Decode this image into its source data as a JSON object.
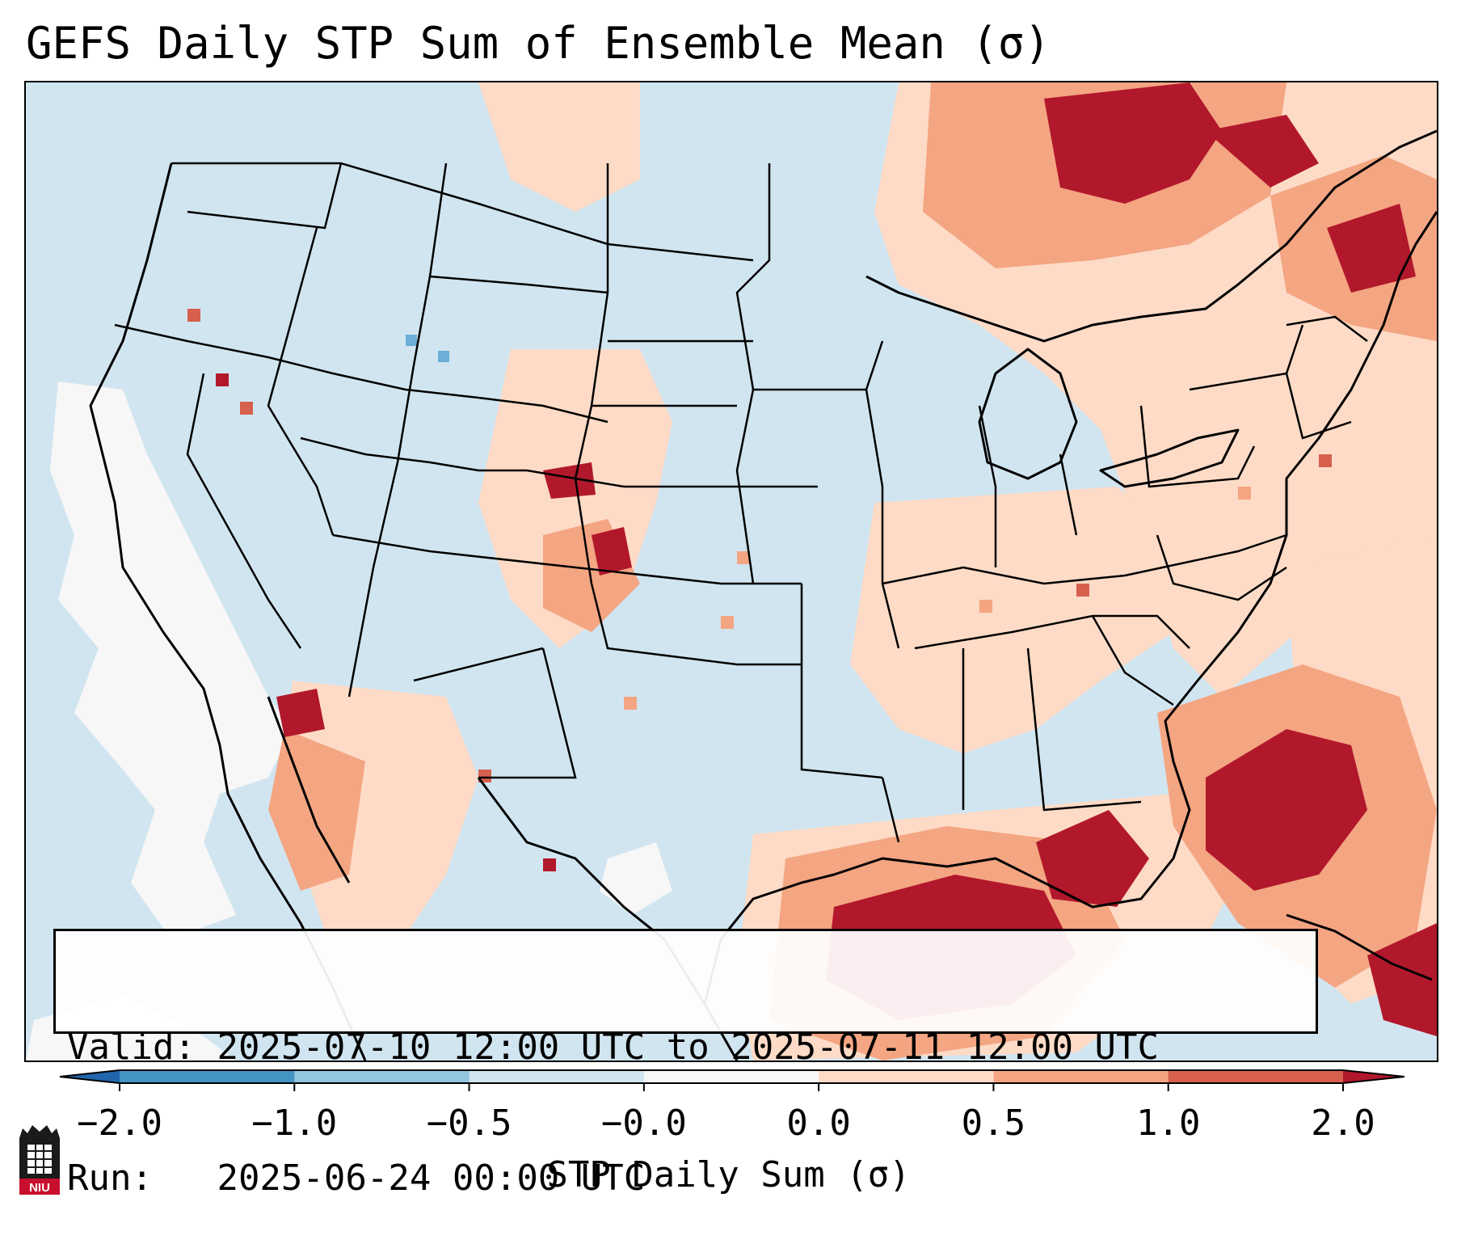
{
  "title": "GEFS Daily STP Sum of Ensemble Mean (σ)",
  "info": {
    "valid_label": "Valid:",
    "valid_value": "2025-07-10 12:00 UTC to 2025-07-11 12:00 UTC",
    "run_label": "Run:",
    "run_value": "2025-06-24 00:00 UTC"
  },
  "colorbar": {
    "label": "STP Daily Sum (σ)",
    "ticks": [
      "−2.0",
      "−1.0",
      "−0.5",
      "−0.0",
      "0.0",
      "0.5",
      "1.0",
      "2.0"
    ],
    "bins": [
      {
        "range": "below -2.0",
        "color": "#2166ac"
      },
      {
        "range": "-2.0 to -1.0",
        "color": "#4393c3"
      },
      {
        "range": "-1.0 to -0.5",
        "color": "#92c5de"
      },
      {
        "range": "-0.5 to -0.0",
        "color": "#d1e5f0"
      },
      {
        "range": "-0.0 to 0.0",
        "color": "#f7f7f7"
      },
      {
        "range": "0.0 to 0.5",
        "color": "#fddbc7"
      },
      {
        "range": "0.5 to 1.0",
        "color": "#f4a582"
      },
      {
        "range": "1.0 to 2.0",
        "color": "#d6604d"
      },
      {
        "range": "above 2.0",
        "color": "#b2182b"
      }
    ]
  },
  "map": {
    "projection": "Lambert Conformal (CONUS)",
    "background_color": "#d1e5f0",
    "positive_regions": [
      "Great Lakes / southern Canada",
      "Northeast US",
      "Gulf of Mexico",
      "Western Atlantic off Southeast coast",
      "Central High Plains",
      "Mexico"
    ]
  },
  "logo": {
    "text": "NIU"
  }
}
